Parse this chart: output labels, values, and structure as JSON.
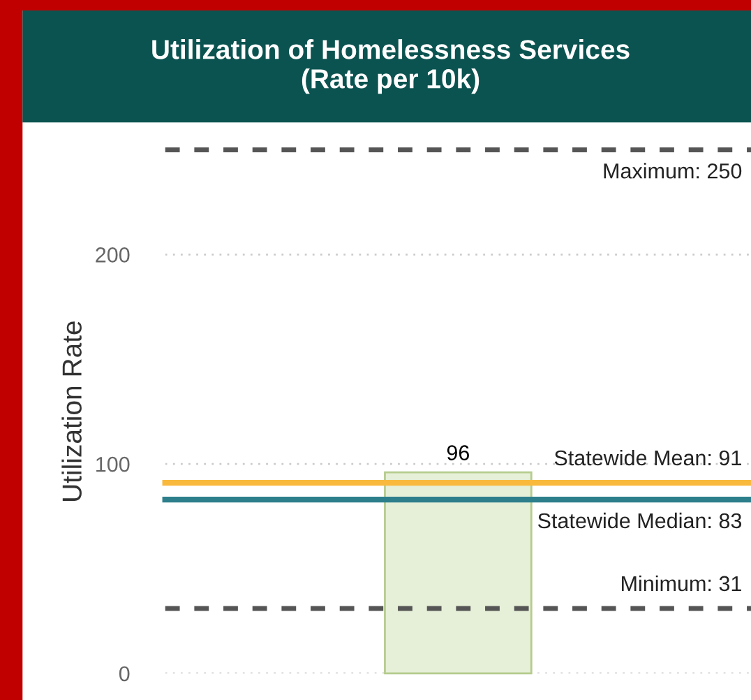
{
  "chart_data": {
    "type": "bar",
    "title": "Utilization of Homelessness Services\n(Rate per 10k)",
    "ylabel": "Utilization Rate",
    "categories": [
      null
    ],
    "values": [
      96
    ],
    "color": "#e6efd8",
    "data_labels": true,
    "ylim": [
      0,
      250
    ],
    "yticks": [
      0,
      100,
      200
    ],
    "grid": "y",
    "ref_lines": [
      {
        "axis": "y",
        "value": 250,
        "label": "Maximum: 250",
        "color": "#555555",
        "line_style": "dashed"
      },
      {
        "axis": "y",
        "value": 91,
        "label": "Statewide Mean: 91",
        "color": "#f9b93c",
        "line_style": "solid"
      },
      {
        "axis": "y",
        "value": 83,
        "label": "Statewide Median: 83",
        "color": "#2e7f8c",
        "line_style": "solid"
      },
      {
        "axis": "y",
        "value": 31,
        "label": "Minimum: 31",
        "color": "#555555",
        "line_style": "dashed"
      }
    ]
  }
}
